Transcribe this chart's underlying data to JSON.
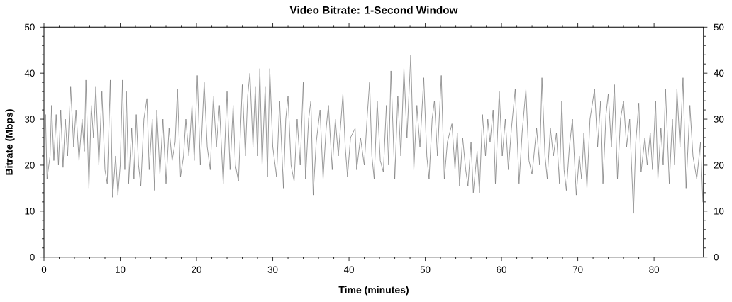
{
  "chart_data": {
    "type": "line",
    "title": "Video Bitrate: 1-Second Window",
    "xlabel": "Time (minutes)",
    "ylabel": "Bitrate (Mbps)",
    "color": "#808080",
    "x": [
      0.0,
      0.2,
      0.4,
      0.8,
      1.0,
      1.3,
      1.6,
      1.9,
      2.2,
      2.5,
      2.8,
      3.1,
      3.5,
      3.9,
      4.2,
      4.6,
      5.0,
      5.3,
      5.5,
      5.9,
      6.2,
      6.5,
      6.8,
      7.2,
      7.6,
      8.0,
      8.3,
      8.7,
      9.0,
      9.4,
      9.7,
      10.0,
      10.3,
      10.6,
      10.8,
      11.1,
      11.5,
      11.8,
      12.1,
      12.4,
      12.7,
      13.1,
      13.5,
      13.8,
      14.2,
      14.5,
      14.8,
      15.2,
      15.6,
      16.0,
      16.4,
      16.8,
      17.2,
      17.5,
      17.9,
      18.3,
      18.6,
      19.0,
      19.4,
      19.7,
      20.1,
      20.5,
      21.0,
      21.4,
      21.8,
      22.2,
      22.6,
      23.0,
      23.5,
      24.0,
      24.4,
      24.8,
      25.1,
      25.5,
      26.0,
      26.4,
      26.7,
      27.0,
      27.4,
      27.7,
      28.0,
      28.3,
      28.6,
      29.0,
      29.3,
      29.6,
      30.0,
      30.5,
      30.9,
      31.4,
      31.7,
      32.0,
      32.4,
      32.8,
      33.2,
      33.6,
      34.0,
      34.3,
      34.7,
      35.0,
      35.3,
      35.7,
      36.2,
      36.6,
      37.0,
      37.3,
      37.8,
      38.2,
      38.6,
      39.2,
      39.5,
      39.8,
      40.2,
      40.8,
      41.0,
      41.5,
      42.0,
      42.4,
      42.7,
      43.0,
      43.3,
      43.7,
      44.1,
      44.5,
      44.9,
      45.2,
      45.5,
      46.0,
      46.4,
      46.8,
      47.2,
      47.6,
      48.1,
      48.5,
      48.9,
      49.3,
      49.8,
      50.2,
      50.5,
      50.9,
      51.2,
      51.6,
      52.1,
      52.5,
      52.9,
      53.5,
      53.9,
      54.2,
      54.5,
      54.9,
      55.3,
      55.6,
      56.0,
      56.3,
      56.8,
      57.1,
      57.5,
      57.9,
      58.2,
      58.5,
      58.9,
      59.2,
      59.7,
      60.1,
      60.5,
      60.9,
      61.3,
      61.8,
      62.3,
      62.7,
      63.2,
      63.6,
      64.0,
      64.6,
      65.0,
      65.3,
      65.7,
      66.0,
      66.4,
      66.8,
      67.2,
      67.6,
      67.9,
      68.2,
      68.5,
      68.9,
      69.3,
      69.8,
      70.2,
      70.5,
      70.8,
      71.2,
      71.6,
      72.2,
      72.6,
      73.0,
      73.3,
      73.7,
      74.0,
      74.4,
      74.8,
      75.2,
      75.6,
      76.0,
      76.4,
      76.8,
      77.3,
      77.6,
      78.0,
      78.3,
      78.8,
      79.1,
      79.5,
      79.8,
      80.2,
      80.5,
      80.9,
      81.2,
      81.5,
      82.0,
      82.4,
      82.7,
      83.0,
      83.4,
      83.8,
      84.2,
      84.7,
      85.1,
      85.6,
      86.1,
      86.4
    ],
    "values": [
      25,
      31,
      17,
      22,
      33,
      21,
      31,
      20,
      32,
      19.5,
      30,
      22,
      37,
      24,
      32,
      21,
      30,
      23,
      38.5,
      15,
      33,
      26,
      37,
      20,
      36,
      19,
      16,
      38.5,
      13,
      22,
      13.5,
      20,
      38.5,
      19,
      36,
      16,
      28,
      17,
      31,
      20,
      15.5,
      30,
      34.5,
      19,
      30,
      14.5,
      32,
      18,
      30,
      16,
      28,
      21,
      25,
      36.5,
      17.5,
      22,
      30,
      22,
      33,
      21,
      39.5,
      20,
      38,
      24,
      19,
      35,
      24,
      33,
      16,
      36,
      19,
      33,
      20,
      16.5,
      37.5,
      22,
      35,
      40,
      24,
      37,
      22,
      41,
      20,
      37,
      17.5,
      41,
      24,
      17.5,
      34,
      15,
      30,
      35,
      20,
      16.5,
      30,
      20,
      38,
      17,
      30,
      34,
      13.5,
      25,
      32,
      17,
      28,
      33,
      19,
      30,
      22,
      35.5,
      24,
      17.5,
      26,
      28,
      19,
      26,
      20,
      31,
      38,
      22,
      17,
      34,
      21,
      18.5,
      33,
      20,
      40.5,
      17,
      35,
      22,
      41,
      26,
      44,
      19,
      33,
      24,
      39,
      22,
      17,
      30,
      34,
      22,
      39.5,
      17,
      25,
      29,
      19,
      27,
      15.5,
      26,
      19,
      15.5,
      25,
      14,
      23,
      14,
      31,
      22,
      30,
      25,
      32,
      16,
      36,
      22,
      30,
      19,
      28,
      36.5,
      16,
      27,
      36.5,
      21,
      18,
      28,
      20,
      39,
      22,
      17,
      28,
      22,
      27,
      16,
      34,
      19,
      14.5,
      24,
      30,
      13.5,
      22,
      17,
      27,
      15,
      30,
      36.5,
      24,
      34,
      16,
      31,
      35.5,
      24,
      37.5,
      17,
      30,
      34,
      24,
      30,
      9.5,
      25,
      33.5,
      18.5,
      26,
      20,
      27,
      19,
      34,
      17,
      28,
      20,
      36.5,
      16,
      30,
      20,
      36.5,
      24,
      39,
      15,
      33,
      22,
      17,
      25,
      12
    ],
    "xlim": [
      0,
      86.5
    ],
    "xticks": [
      0,
      10,
      20,
      30,
      40,
      50,
      60,
      70,
      80
    ],
    "ylim": [
      0,
      50
    ],
    "yticks": [
      0,
      10,
      20,
      30,
      40,
      50
    ],
    "y2lim": [
      0,
      50
    ],
    "y2ticks": [
      0,
      10,
      20,
      30,
      40,
      50
    ]
  }
}
